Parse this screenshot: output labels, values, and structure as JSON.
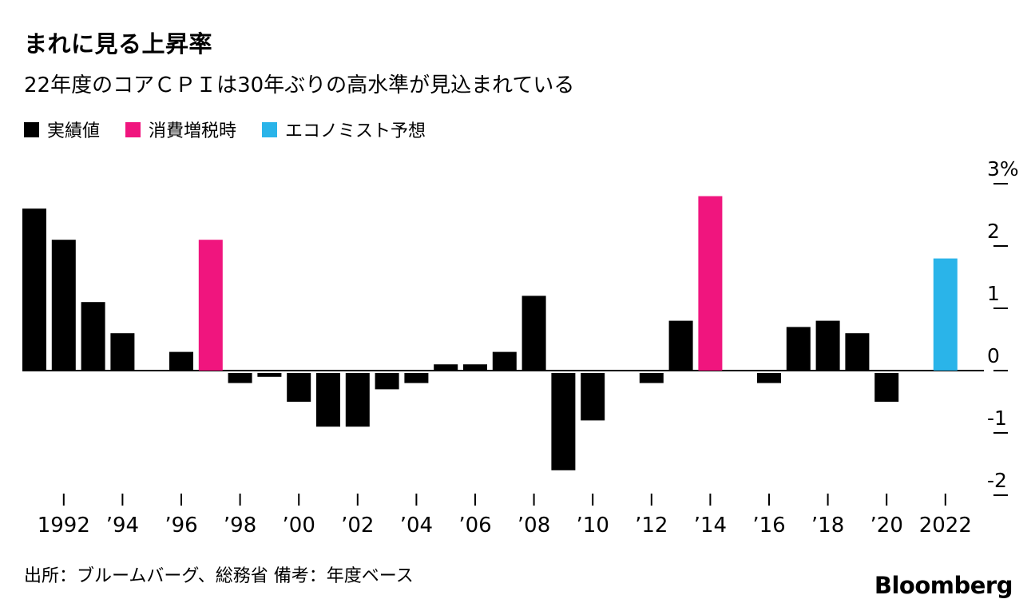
{
  "header": {
    "title": "まれに見る上昇率",
    "subtitle": "22年度のコアＣＰＩは30年ぶりの高水準が見込まれている"
  },
  "legend": [
    {
      "label": "実績値",
      "color": "#000000"
    },
    {
      "label": "消費増税時",
      "color": "#f0157e"
    },
    {
      "label": "エコノミスト予想",
      "color": "#2ab4e9"
    }
  ],
  "chart_data": {
    "type": "bar",
    "title": "まれに見る上昇率",
    "subtitle": "22年度のコアＣＰＩは30年ぶりの高水準が見込まれている",
    "unit": "%",
    "ylim": [
      -2.4,
      3.4
    ],
    "grid": "off",
    "legend_position": "top-left",
    "x": [
      1991,
      1992,
      1993,
      1994,
      1995,
      1996,
      1997,
      1998,
      1999,
      2000,
      2001,
      2002,
      2003,
      2004,
      2005,
      2006,
      2007,
      2008,
      2009,
      2010,
      2011,
      2012,
      2013,
      2014,
      2015,
      2016,
      2017,
      2018,
      2019,
      2020,
      2021,
      2022
    ],
    "values": [
      2.6,
      2.1,
      1.1,
      0.6,
      0,
      0.3,
      2.1,
      -0.2,
      -0.1,
      -0.5,
      -0.9,
      -0.9,
      -0.3,
      -0.2,
      0.1,
      0.1,
      0.3,
      1.2,
      -1.6,
      -0.8,
      0,
      -0.2,
      0.8,
      2.8,
      0,
      -0.2,
      0.7,
      0.8,
      0.6,
      -0.5,
      0,
      1.8
    ],
    "series": [
      {
        "name": "実績値",
        "color": "#000000"
      },
      {
        "name": "消費増税時",
        "color": "#f0157e"
      },
      {
        "name": "エコノミスト予想",
        "color": "#2ab4e9"
      }
    ],
    "tax_hike_years": [
      1997,
      2014
    ],
    "forecast_years": [
      2022
    ],
    "xticks": [
      {
        "year": 1992,
        "label": "1992"
      },
      {
        "year": 1994,
        "label": "’94"
      },
      {
        "year": 1996,
        "label": "’96"
      },
      {
        "year": 1998,
        "label": "’98"
      },
      {
        "year": 2000,
        "label": "’00"
      },
      {
        "year": 2002,
        "label": "’02"
      },
      {
        "year": 2004,
        "label": "’04"
      },
      {
        "year": 2006,
        "label": "’06"
      },
      {
        "year": 2008,
        "label": "’08"
      },
      {
        "year": 2010,
        "label": "’10"
      },
      {
        "year": 2012,
        "label": "’12"
      },
      {
        "year": 2014,
        "label": "’14"
      },
      {
        "year": 2016,
        "label": "’16"
      },
      {
        "year": 2018,
        "label": "’18"
      },
      {
        "year": 2020,
        "label": "’20"
      },
      {
        "year": 2022,
        "label": "2022"
      }
    ],
    "yticks": [
      {
        "value": 3,
        "label": "3%"
      },
      {
        "value": 2,
        "label": "2"
      },
      {
        "value": 1,
        "label": "1"
      },
      {
        "value": 0,
        "label": "0"
      },
      {
        "value": -1,
        "label": "-1"
      },
      {
        "value": -2,
        "label": "-2"
      }
    ]
  },
  "footer": {
    "source": "出所：ブルームバーグ、総務省 備考：年度ベース",
    "brand": "Bloomberg"
  }
}
